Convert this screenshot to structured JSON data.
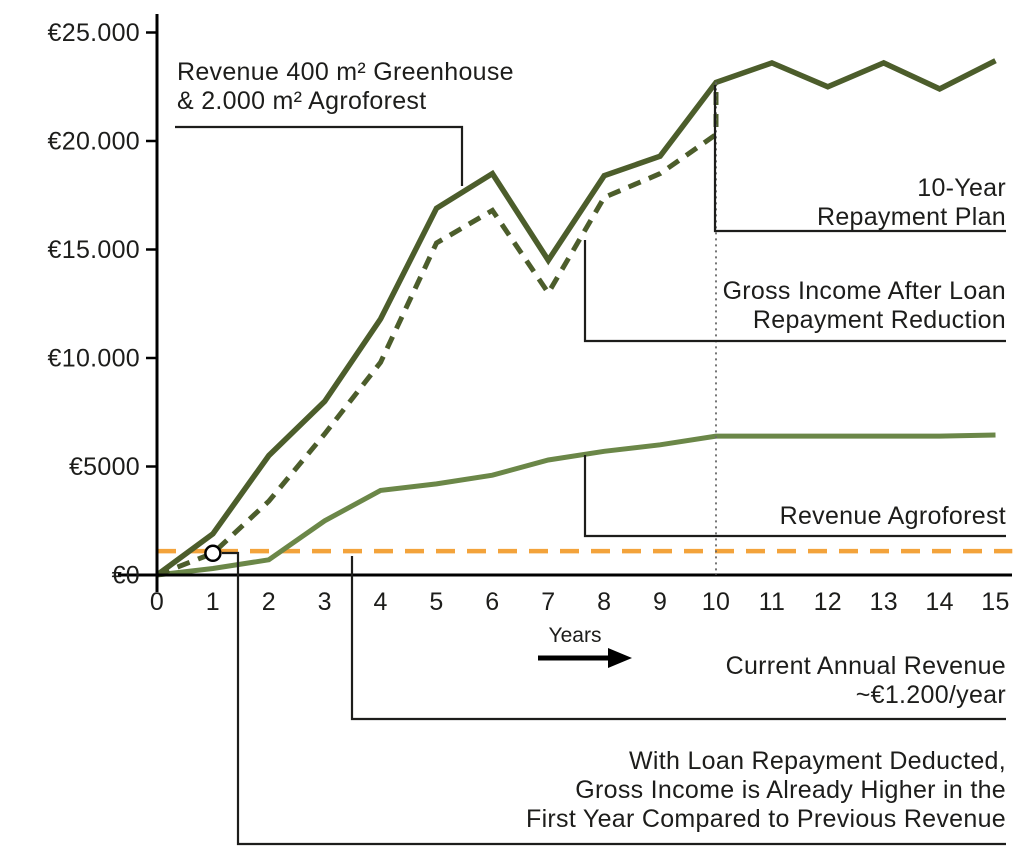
{
  "page": {
    "background": "#ffffff",
    "text_color": "#1d1d1b"
  },
  "chart_data": {
    "type": "line",
    "title": "",
    "xlabel": "Years",
    "xlim": [
      0,
      15.3
    ],
    "ylim": [
      0,
      25000
    ],
    "grid": false,
    "x_ticks": [
      "0",
      "1",
      "2",
      "3",
      "4",
      "5",
      "6",
      "7",
      "8",
      "9",
      "10",
      "11",
      "12",
      "13",
      "14",
      "15"
    ],
    "y_ticks": [
      {
        "label": "€25.000",
        "value": 25000
      },
      {
        "label": "€20.000",
        "value": 20000
      },
      {
        "label": "€15.000",
        "value": 15000
      },
      {
        "label": "€10.000",
        "value": 10000
      },
      {
        "label": "€5000",
        "value": 5000
      },
      {
        "label": "€0",
        "value": 0
      }
    ],
    "series": [
      {
        "name": "Revenue 400 m² Greenhouse & 2.000 m² Agroforest",
        "color": "#4c5d2b",
        "line_style": "solid",
        "points": [
          [
            0,
            0
          ],
          [
            1,
            1900
          ],
          [
            2,
            5500
          ],
          [
            3,
            8000
          ],
          [
            4,
            11800
          ],
          [
            5,
            16900
          ],
          [
            6,
            18500
          ],
          [
            7,
            14500
          ],
          [
            8,
            18400
          ],
          [
            9,
            19300
          ],
          [
            10,
            22700
          ],
          [
            11,
            23600
          ],
          [
            12,
            22500
          ],
          [
            13,
            23600
          ],
          [
            14,
            22400
          ],
          [
            15,
            23700
          ]
        ]
      },
      {
        "name": "Gross Income After Loan Repayment Reduction",
        "color": "#4c5d2b",
        "line_style": "dashed",
        "points": [
          [
            0,
            0
          ],
          [
            1,
            1000
          ],
          [
            2,
            3400
          ],
          [
            3,
            6500
          ],
          [
            4,
            9800
          ],
          [
            5,
            15300
          ],
          [
            6,
            16800
          ],
          [
            7,
            13000
          ],
          [
            8,
            17400
          ],
          [
            9,
            18500
          ],
          [
            10,
            20300
          ],
          [
            10,
            22700
          ]
        ]
      },
      {
        "name": "Revenue Agroforest",
        "color": "#6b8748",
        "line_style": "solid",
        "points": [
          [
            0,
            0
          ],
          [
            1,
            300
          ],
          [
            2,
            700
          ],
          [
            3,
            2500
          ],
          [
            4,
            3900
          ],
          [
            5,
            4200
          ],
          [
            6,
            4600
          ],
          [
            7,
            5300
          ],
          [
            8,
            5700
          ],
          [
            9,
            6000
          ],
          [
            10,
            6400
          ],
          [
            11,
            6400
          ],
          [
            12,
            6400
          ],
          [
            13,
            6400
          ],
          [
            14,
            6400
          ],
          [
            15,
            6450
          ]
        ]
      },
      {
        "name": "Current Annual Revenue ~€1.200/year",
        "color": "#f3a33b",
        "line_style": "dashed",
        "points": [
          [
            0,
            1100
          ],
          [
            15.3,
            1100
          ]
        ]
      }
    ],
    "markers": [
      {
        "name": "first-year-marker",
        "x": 1,
        "y": 1000,
        "shape": "open-circle"
      }
    ],
    "reference_lines": [
      {
        "name": "repayment-end-year",
        "x": 10,
        "y_top": 22700,
        "style": "dotted"
      }
    ]
  },
  "annotations": {
    "greenhouse_revenue": [
      "Revenue 400 m² Greenhouse",
      "& 2.000 m² Agroforest"
    ],
    "repayment_plan": [
      "10-Year",
      "Repayment Plan"
    ],
    "gross_income": [
      "Gross Income After Loan",
      "Repayment Reduction"
    ],
    "agroforest": [
      "Revenue Agroforest"
    ],
    "current_revenue": [
      "Current Annual Revenue",
      "~€1.200/year"
    ],
    "first_year_note": [
      "With Loan Repayment Deducted,",
      "Gross Income is Already Higher in the",
      "First Year Compared to Previous Revenue"
    ]
  }
}
